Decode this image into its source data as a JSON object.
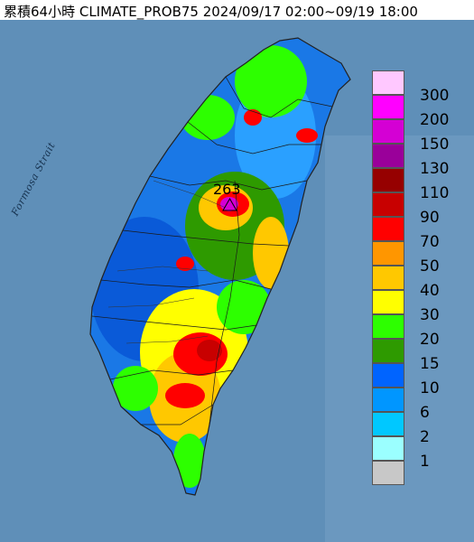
{
  "title": "累積64小時 CLIMATE_PROB75 2024/09/17 02:00~09/19 18:00",
  "strait_label": "Formosa Strait",
  "max_value": "263",
  "legend": [
    {
      "label": "300",
      "color": "#ffc8ff"
    },
    {
      "label": "200",
      "color": "#ff00ff"
    },
    {
      "label": "150",
      "color": "#d400d4"
    },
    {
      "label": "130",
      "color": "#9a009a"
    },
    {
      "label": "110",
      "color": "#960000"
    },
    {
      "label": "90",
      "color": "#c80000"
    },
    {
      "label": "70",
      "color": "#ff0000"
    },
    {
      "label": "50",
      "color": "#ff9600"
    },
    {
      "label": "40",
      "color": "#ffc800"
    },
    {
      "label": "30",
      "color": "#ffff00"
    },
    {
      "label": "20",
      "color": "#2dff00"
    },
    {
      "label": "15",
      "color": "#2e9a00"
    },
    {
      "label": "10",
      "color": "#0064ff"
    },
    {
      "label": "6",
      "color": "#0096ff"
    },
    {
      "label": "2",
      "color": "#00c8ff"
    },
    {
      "label": "1",
      "color": "#9bffff"
    },
    {
      "label": "",
      "color": "#c8c8c8"
    }
  ]
}
